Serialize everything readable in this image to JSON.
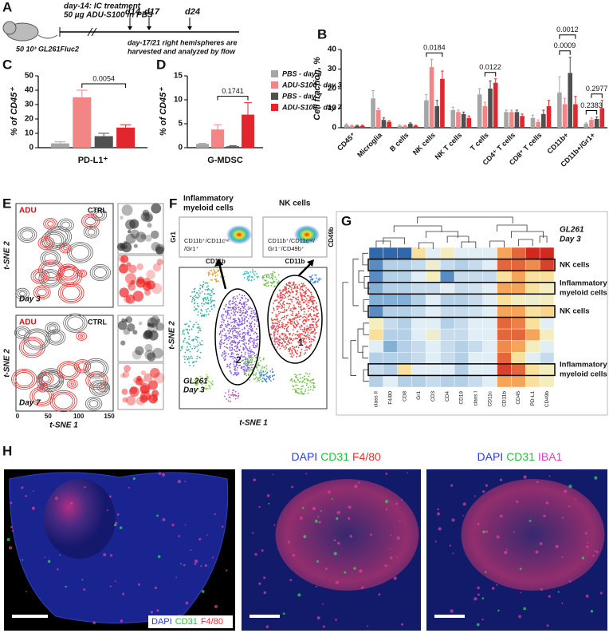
{
  "panel_a": {
    "label": "A",
    "treatment": [
      "day-14: IC treatment",
      "50 µg ADU-S100 in PBS"
    ],
    "timepoints": [
      "d14",
      "d17",
      "d24"
    ],
    "harvest": [
      "day-17/21 right hemispheres are",
      "harvested and analyzed by flow"
    ],
    "cells": "50 10³ GL261Fluc2"
  },
  "chart_data": [
    {
      "type": "bar",
      "label": "C",
      "y_label": "% of CD45⁺",
      "categories": [
        "PD-L1⁺"
      ],
      "ylim": [
        0,
        50
      ],
      "yticks": [
        0,
        10,
        20,
        30,
        40,
        50
      ],
      "series": [
        {
          "color": "#a6a6a6",
          "values": [
            3
          ],
          "errors": [
            1
          ]
        },
        {
          "color": "#f28585",
          "values": [
            35
          ],
          "errors": [
            5
          ]
        },
        {
          "color": "#505050",
          "values": [
            8
          ],
          "errors": [
            2
          ]
        },
        {
          "color": "#e3262b",
          "values": [
            14
          ],
          "errors": [
            2
          ]
        }
      ],
      "annotations": [
        {
          "text": "0.0054",
          "category": 0,
          "series": [
            1,
            3
          ]
        }
      ]
    },
    {
      "type": "bar",
      "label": "D",
      "y_label": "% of CD45⁺",
      "categories": [
        "G-MDSC"
      ],
      "ylim": [
        0,
        15
      ],
      "yticks": [
        0,
        5,
        10,
        15
      ],
      "series": [
        {
          "name": "PBS - day 3",
          "color": "#a6a6a6",
          "values": [
            0.8
          ],
          "errors": [
            0.1
          ]
        },
        {
          "name": "ADU-S100 - day 3",
          "color": "#f28585",
          "values": [
            3.8
          ],
          "errors": [
            1
          ]
        },
        {
          "name": "PBS - day 7",
          "color": "#505050",
          "values": [
            0.3
          ],
          "errors": [
            0.1
          ]
        },
        {
          "name": "ADU-S100 - day 7",
          "color": "#e3262b",
          "values": [
            6.9
          ],
          "errors": [
            2.5
          ]
        }
      ],
      "legend": "right",
      "annotations": [
        {
          "text": "0.1741",
          "category": 0,
          "series": [
            1,
            3
          ]
        }
      ]
    },
    {
      "type": "bar",
      "label": "B",
      "y_label": "Cell fraction, %",
      "categories": [
        "CD45⁺",
        "Microglia",
        "B cells",
        "NK cells",
        "NK T cells",
        "T cells",
        "CD4⁺ T cells",
        "CD8⁺ T cells",
        "CD11b+",
        "CD11b+/Gr1+"
      ],
      "ylim": [
        0,
        40
      ],
      "yticks": [
        0,
        10,
        20,
        30,
        40
      ],
      "series": [
        {
          "color": "#a6a6a6",
          "values": [
            1.5,
            15,
            1,
            14,
            9,
            17,
            8,
            5,
            18,
            2
          ],
          "errors": [
            0.5,
            4,
            0.5,
            3,
            1.5,
            3,
            1,
            1.5,
            8,
            0.5
          ]
        },
        {
          "color": "#f28585",
          "values": [
            1,
            9,
            1,
            31,
            8,
            11,
            8,
            3,
            12,
            4
          ],
          "errors": [
            0.3,
            1,
            0.3,
            4,
            1,
            2,
            1,
            1,
            3,
            1
          ]
        },
        {
          "color": "#505050",
          "values": [
            1,
            4,
            2,
            11,
            7,
            20,
            8,
            7,
            28,
            4.5
          ],
          "errors": [
            0.3,
            1,
            0.5,
            3,
            1,
            4,
            1,
            2,
            8,
            1
          ]
        },
        {
          "color": "#e3262b",
          "values": [
            1,
            3,
            1,
            25,
            5,
            23,
            6,
            11,
            12,
            10
          ],
          "errors": [
            0.3,
            0.5,
            0.3,
            4,
            1,
            2,
            1,
            3,
            4,
            4
          ]
        }
      ],
      "annotations": [
        {
          "text": "0.0184",
          "category": 3,
          "series": [
            0,
            3
          ]
        },
        {
          "text": "0.0122",
          "category": 5,
          "series": [
            1,
            3
          ]
        },
        {
          "text": "0.0009",
          "category": 8,
          "series": [
            0,
            2
          ]
        },
        {
          "text": "0.0012",
          "category": 8,
          "series": [
            0,
            3
          ]
        },
        {
          "text": "0.2383",
          "category": 9,
          "series": [
            0,
            2
          ]
        },
        {
          "text": "0.2977",
          "category": 9,
          "series": [
            1,
            3
          ]
        }
      ]
    }
  ],
  "panel_e": {
    "label": "E",
    "legend": [
      "ADU",
      "CTRL"
    ],
    "y_label": "t-SNE 2",
    "x_label": "t-SNE 1",
    "days": [
      "Day 3",
      "Day 7"
    ],
    "xticks": [
      0,
      50,
      100,
      150
    ]
  },
  "panel_f": {
    "label": "F",
    "plot_titles": [
      [
        "Inflammatory",
        "myeloid cells"
      ],
      [
        "NK cells"
      ]
    ],
    "y_axes": [
      "Gr1",
      "CD49b"
    ],
    "x_axes": [
      "CD11b",
      "CD11b"
    ],
    "gates": [
      [
        "CD11b⁺/CD11cⁱⁿᵗ",
        "/Gr1⁺"
      ],
      [
        "CD11b⁺/CD11cⁱⁿᵗ/",
        "Gr1⁻/CD49b⁺"
      ]
    ],
    "clusters": [
      "1",
      "2"
    ],
    "y_label": "t-SNE 2",
    "x_label": "t-SNE 1",
    "sample": [
      "GL261",
      "Day 3"
    ]
  },
  "panel_g": {
    "label": "G",
    "sample": [
      "GL261",
      "Day 3"
    ],
    "columns": [
      "class II",
      "F4/80",
      "CD8",
      "Gr1",
      "CD3",
      "CD4",
      "CD19",
      "class I",
      "CD11c",
      "CD11b",
      "CD45",
      "PD-L1",
      "CD49b"
    ],
    "row_labels": [
      null,
      [
        "NK cells"
      ],
      null,
      [
        "Inflammatory",
        "myeloid cells"
      ],
      null,
      [
        "NK cells"
      ],
      null,
      null,
      null,
      null,
      [
        "Inflammatory",
        "myeloid cells"
      ],
      null
    ],
    "values": [
      [
        -2,
        -2,
        -2,
        0.5,
        0,
        0.3,
        0,
        0,
        0,
        1,
        1.5,
        2,
        2
      ],
      [
        -1.5,
        -0.5,
        -0.5,
        -0.3,
        0.2,
        -0.3,
        -0.5,
        -0.3,
        0,
        1.5,
        1.5,
        1.2,
        1.8
      ],
      [
        -1.5,
        -0.5,
        -0.5,
        0,
        0.3,
        -1.5,
        -0.3,
        -0.3,
        -0.3,
        0.5,
        1,
        0.5,
        0.5
      ],
      [
        -1,
        -0.5,
        -0.5,
        -0.3,
        -0.3,
        0,
        -0.3,
        -0.2,
        0,
        1,
        1,
        0.5,
        0.3
      ],
      [
        -1,
        -1,
        -1,
        -0.5,
        0,
        -0.5,
        -0.5,
        -0.3,
        0,
        0.5,
        0.3,
        0.2,
        0.3
      ],
      [
        -1.5,
        -0.5,
        -0.5,
        -0.3,
        0,
        -0.3,
        -0.3,
        -0.2,
        0,
        1,
        1,
        0.5,
        0.6
      ],
      [
        0.3,
        -0.3,
        -0.5,
        0,
        0,
        -0.5,
        -0.3,
        0,
        0,
        1.5,
        1.3,
        0.5,
        0
      ],
      [
        0.5,
        -0.5,
        -0.5,
        0,
        0.2,
        -0.3,
        -0.3,
        0,
        0,
        1.5,
        1.5,
        1,
        0.3
      ],
      [
        0,
        -1,
        -0.5,
        -0.3,
        0,
        -0.3,
        -0.5,
        -0.3,
        0,
        1.2,
        1,
        0.3,
        0
      ],
      [
        -0.5,
        -0.5,
        -0.5,
        -0.3,
        0,
        -0.3,
        -0.5,
        0,
        0,
        1.5,
        0.5,
        0,
        -0.3
      ],
      [
        -0.3,
        -0.5,
        0.5,
        0,
        0,
        0,
        -0.5,
        0,
        0,
        1.8,
        1.5,
        0.5,
        0.3
      ],
      [
        -0.5,
        0,
        -0.5,
        -0.5,
        -0.3,
        -0.5,
        -0.5,
        -0.3,
        0,
        1,
        1,
        0.5,
        0.3
      ]
    ]
  },
  "panel_h": {
    "label": "H",
    "images": [
      {
        "channels": [
          "DAPI",
          "CD31",
          "F4/80"
        ]
      },
      {
        "channels": [
          "DAPI",
          "CD31",
          "F4/80"
        ]
      },
      {
        "channels": [
          "DAPI",
          "CD31",
          "IBA1"
        ]
      }
    ]
  }
}
